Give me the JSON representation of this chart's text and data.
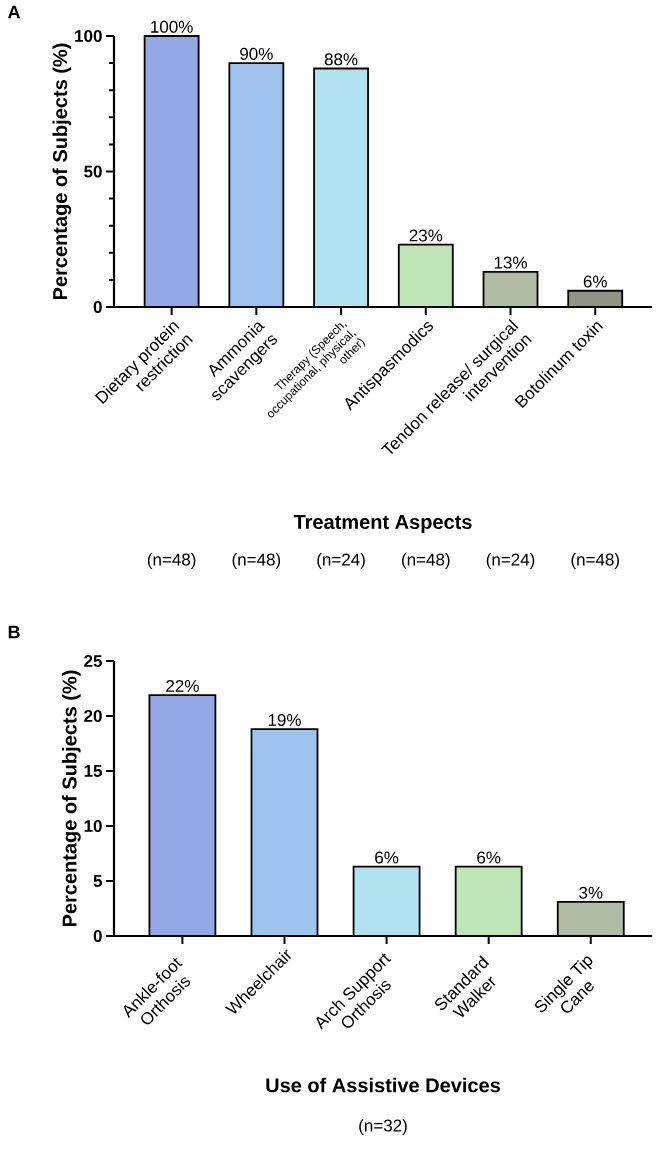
{
  "chart_data": [
    {
      "type": "bar",
      "title": "A",
      "xlabel": "Treatment Aspects",
      "ylabel": "Percentage of Subjects (%)",
      "categories": [
        "Dietary protein restriction",
        "Ammonia scavengers",
        "Therapy (Speech, occupational, physical, other)",
        "Antispasmodics",
        "Tendon release/ surgical intervention",
        "Botolinum toxin"
      ],
      "values": [
        100,
        90,
        88,
        23,
        13,
        6
      ],
      "value_labels": [
        "100%",
        "90%",
        "88%",
        "23%",
        "13%",
        "6%"
      ],
      "colors": [
        "#91a8e5",
        "#9fc3ee",
        "#b0e2ef",
        "#c0e6b7",
        "#b0bca4",
        "#8f9484"
      ],
      "ylim": [
        0,
        100
      ],
      "yticks": [
        0,
        50,
        100
      ],
      "annotations": [
        "(n=48)",
        "(n=48)",
        "(n=24)",
        "(n=48)",
        "(n=24)",
        "(n=48)"
      ]
    },
    {
      "type": "bar",
      "title": "B",
      "xlabel": "Use of Assistive Devices",
      "ylabel": "Percentage of Subjects (%)",
      "categories": [
        "Ankle-foot Orthosis",
        "Wheelchair",
        "Arch Support Orthosis",
        "Standard Walker",
        "Single Tip Cane"
      ],
      "values": [
        21.9,
        18.8,
        6.3,
        6.3,
        3.1
      ],
      "value_labels": [
        "22%",
        "19%",
        "6%",
        "6%",
        "3%"
      ],
      "colors": [
        "#91a8e5",
        "#9fc3ee",
        "#b0e2ef",
        "#c0e6b7",
        "#b0bca4"
      ],
      "ylim": [
        0,
        25
      ],
      "yticks": [
        0,
        5,
        10,
        15,
        20,
        25
      ],
      "annotations": [
        "(n=32)"
      ]
    }
  ]
}
